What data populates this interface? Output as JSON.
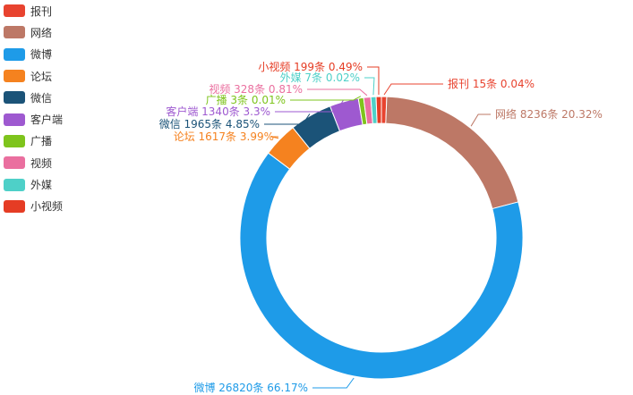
{
  "chart_data": {
    "type": "pie",
    "variant": "donut",
    "legend_position": "top-left",
    "slices": [
      {
        "name": "报刊",
        "value": 15,
        "percent": "0.04%",
        "color": "#e8432f",
        "label": "报刊 15条  0.04%"
      },
      {
        "name": "网络",
        "value": 8236,
        "percent": "20.32%",
        "color": "#bd7866",
        "label": "网络 8236条  20.32%"
      },
      {
        "name": "微博",
        "value": 26820,
        "percent": "66.17%",
        "color": "#1e9be8",
        "label": "微博 26820条  66.17%"
      },
      {
        "name": "论坛",
        "value": 1617,
        "percent": "3.99%",
        "color": "#f5821f",
        "label": "论坛 1617条  3.99%"
      },
      {
        "name": "微信",
        "value": 1965,
        "percent": "4.85%",
        "color": "#1b5378",
        "label": "微信 1965条  4.85%"
      },
      {
        "name": "客户端",
        "value": 1340,
        "percent": "3.3%",
        "color": "#9e59d0",
        "label": "客户端 1340条  3.3%"
      },
      {
        "name": "广播",
        "value": 3,
        "percent": "0.01%",
        "color": "#7ec41c",
        "label": "广播 3条  0.01%"
      },
      {
        "name": "视频",
        "value": 328,
        "percent": "0.81%",
        "color": "#ea6f9f",
        "label": "视频 328条  0.81%"
      },
      {
        "name": "外媒",
        "value": 7,
        "percent": "0.02%",
        "color": "#4ed0c8",
        "label": "外媒 7条  0.02%"
      },
      {
        "name": "小视频",
        "value": 199,
        "percent": "0.49%",
        "color": "#e53c24",
        "label": "小视频 199条  0.49%"
      }
    ]
  }
}
